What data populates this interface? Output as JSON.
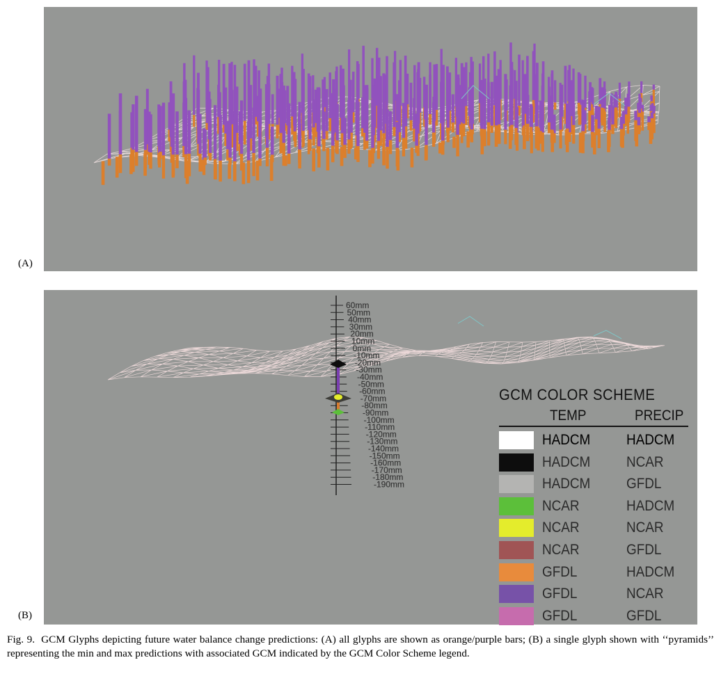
{
  "panel_a": {
    "label": "(A)"
  },
  "panel_b": {
    "label": "(B)",
    "scale_ticks": [
      "60mm",
      "50mm",
      "40mm",
      "30mm",
      "20mm",
      "10mm",
      "0mm",
      "-10mm",
      "-20mm",
      "-30mm",
      "-40mm",
      "-50mm",
      "-60mm",
      "-70mm",
      "-80mm",
      "-90mm",
      "-100mm",
      "-110mm",
      "-120mm",
      "-130mm",
      "-140mm",
      "-150mm",
      "-160mm",
      "-170mm",
      "-180mm",
      "-190mm"
    ],
    "legend": {
      "title": "GCM  COLOR  SCHEME",
      "header_temp": "TEMP",
      "header_precip": "PRECIP",
      "rows": [
        {
          "color": "#ffffff",
          "temp": "HADCM",
          "precip": "HADCM"
        },
        {
          "color": "#0d0d0d",
          "temp": "HADCM",
          "precip": "NCAR"
        },
        {
          "color": "#b4b4b2",
          "temp": "HADCM",
          "precip": "GFDL"
        },
        {
          "color": "#5cbf3a",
          "temp": "NCAR",
          "precip": "HADCM"
        },
        {
          "color": "#e4ec2c",
          "temp": "NCAR",
          "precip": "NCAR"
        },
        {
          "color": "#a05455",
          "temp": "NCAR",
          "precip": "GFDL"
        },
        {
          "color": "#e88b3c",
          "temp": "GFDL",
          "precip": "HADCM"
        },
        {
          "color": "#7752a8",
          "temp": "GFDL",
          "precip": "NCAR"
        },
        {
          "color": "#c66cad",
          "temp": "GFDL",
          "precip": "GFDL"
        }
      ]
    }
  },
  "colors": {
    "background": "#959795",
    "bar_positive": "#9152bd",
    "bar_negative": "#dc7f2c",
    "mesh": "#f4e4e4"
  },
  "caption": {
    "fig_label": "Fig. 9.",
    "text": "GCM Glyphs depicting future water balance change predictions: (A) all glyphs are shown as orange/purple bars; (B) a single glyph shown with ‘‘pyramids’’ representing the min and max predictions with associated GCM indicated by the GCM Color Scheme legend."
  }
}
